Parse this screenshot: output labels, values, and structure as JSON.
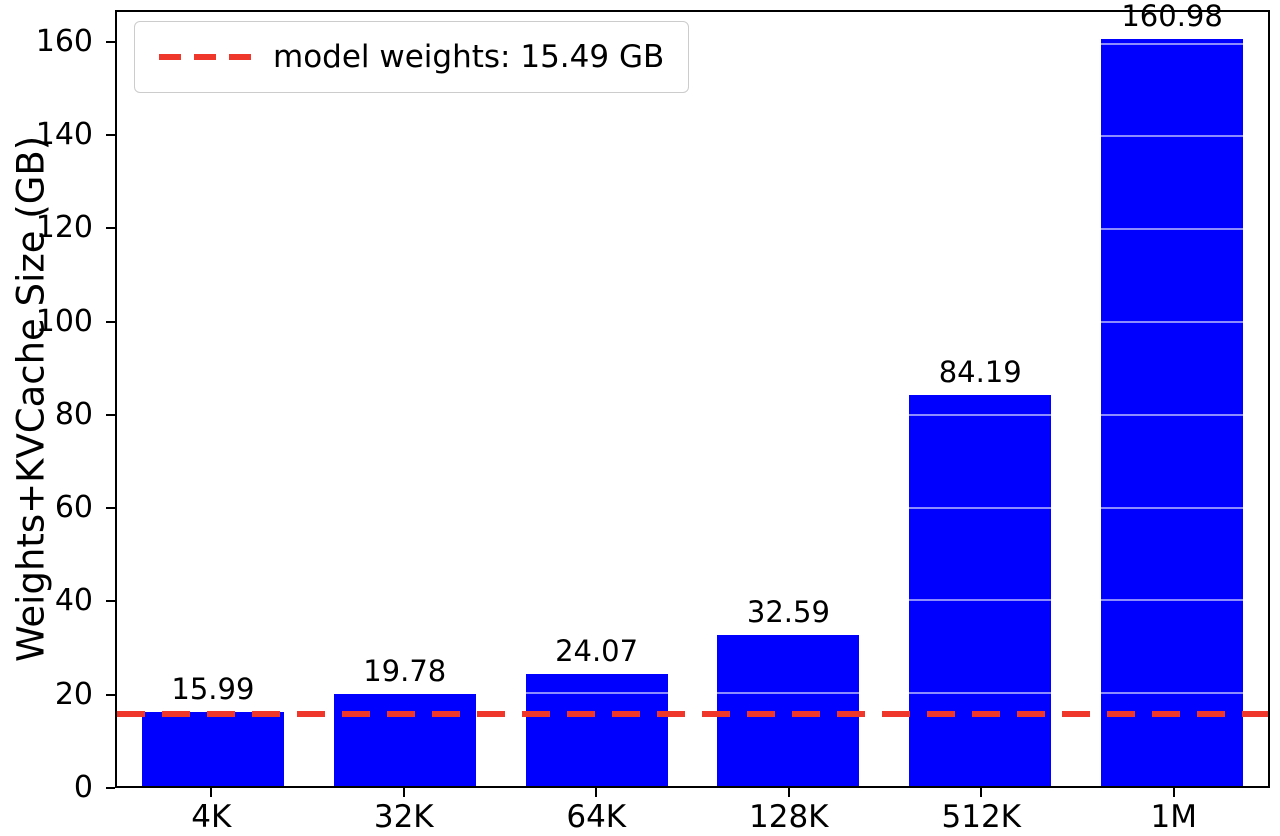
{
  "chart_data": {
    "type": "bar",
    "categories": [
      "4K",
      "32K",
      "64K",
      "128K",
      "512K",
      "1M"
    ],
    "values": [
      15.99,
      19.78,
      24.07,
      32.59,
      84.19,
      160.98
    ],
    "bar_labels": [
      "15.99",
      "19.78",
      "24.07",
      "32.59",
      "84.19",
      "160.98"
    ],
    "title": "",
    "xlabel": "",
    "ylabel": "Weights+KVCache Size (GB)",
    "ylim": [
      0,
      166.8
    ],
    "yticks": [
      0,
      20,
      40,
      60,
      80,
      100,
      120,
      140,
      160
    ],
    "grid": "faint white horizontal gridlines visible over bars",
    "bar_color": "#0000ff",
    "legend": {
      "position": "upper left",
      "entries": [
        {
          "label": "model weights: 15.49 GB",
          "style": "dashed-line",
          "color": "#f0372b"
        }
      ]
    },
    "threshold_line": {
      "value": 15.49,
      "label": "model weights: 15.49 GB",
      "color": "#f0372b",
      "style": "dashed"
    }
  }
}
